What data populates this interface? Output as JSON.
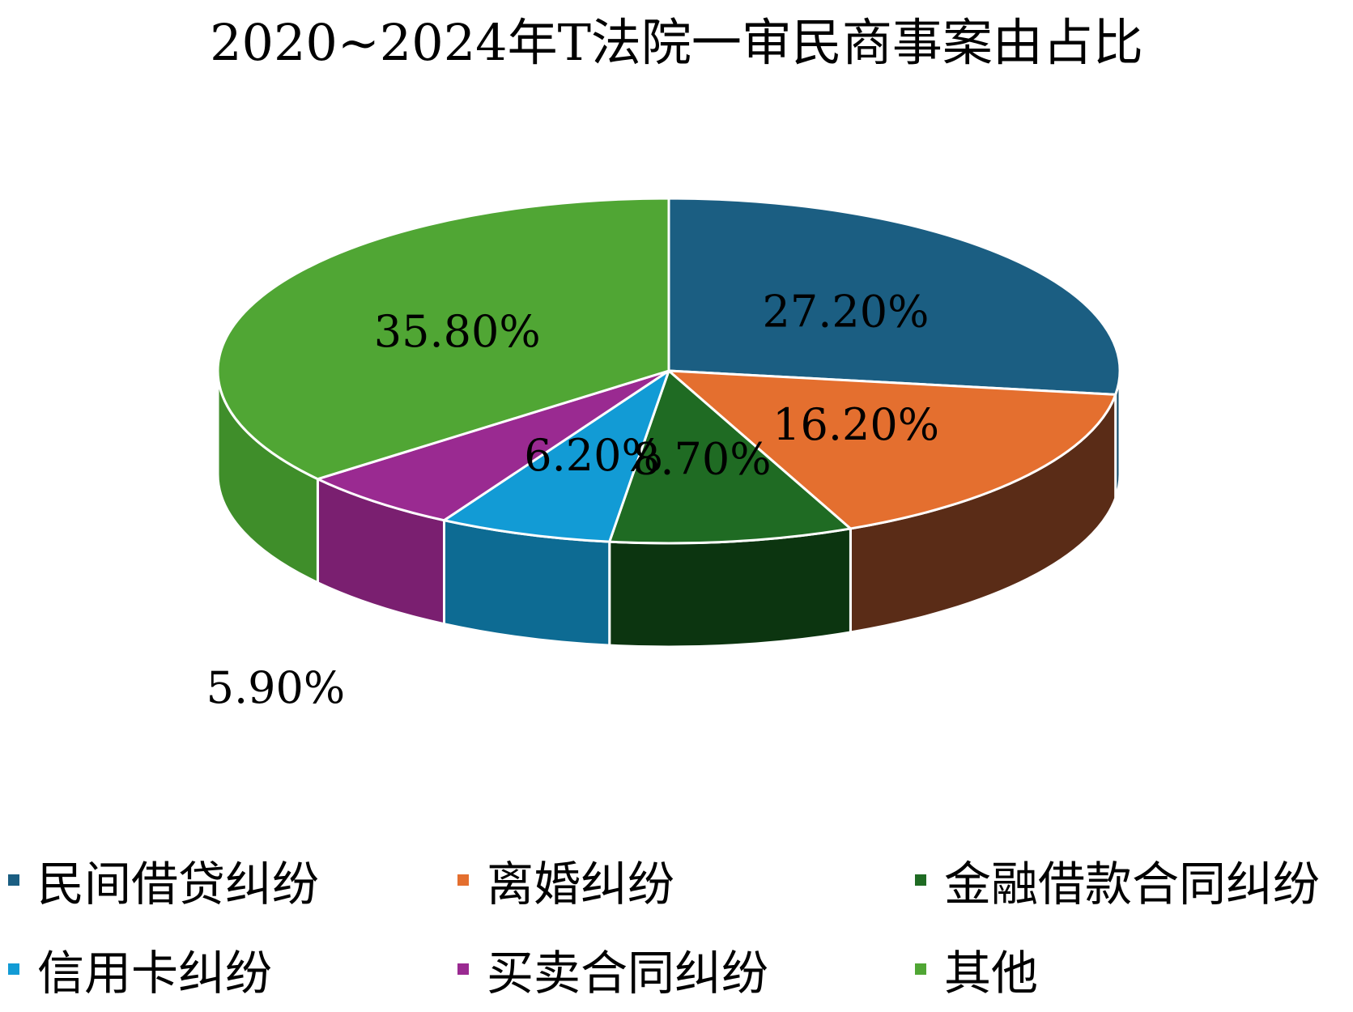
{
  "chart_data": {
    "type": "pie",
    "title": "2020~2024年T法院一审民商事案由占比",
    "categories": [
      "民间借贷纠纷",
      "离婚纠纷",
      "金融借款合同纠纷",
      "信用卡纠纷",
      "买卖合同纠纷",
      "其他"
    ],
    "values": [
      27.2,
      16.2,
      8.7,
      6.2,
      5.9,
      35.8
    ],
    "data_labels": [
      "27.20%",
      "16.20%",
      "8.70%",
      "6.20%",
      "5.90%",
      "35.80%"
    ],
    "colors": [
      "#1b5e82",
      "#e46f2f",
      "#1f6b23",
      "#129bd5",
      "#9a2a91",
      "#50a634"
    ],
    "side_colors": [
      "#174f6d",
      "#5a2c17",
      "#0c3510",
      "#0d6b93",
      "#7a1f70",
      "#3f8e2a"
    ],
    "legend_position": "bottom",
    "style": "3d-pie"
  }
}
